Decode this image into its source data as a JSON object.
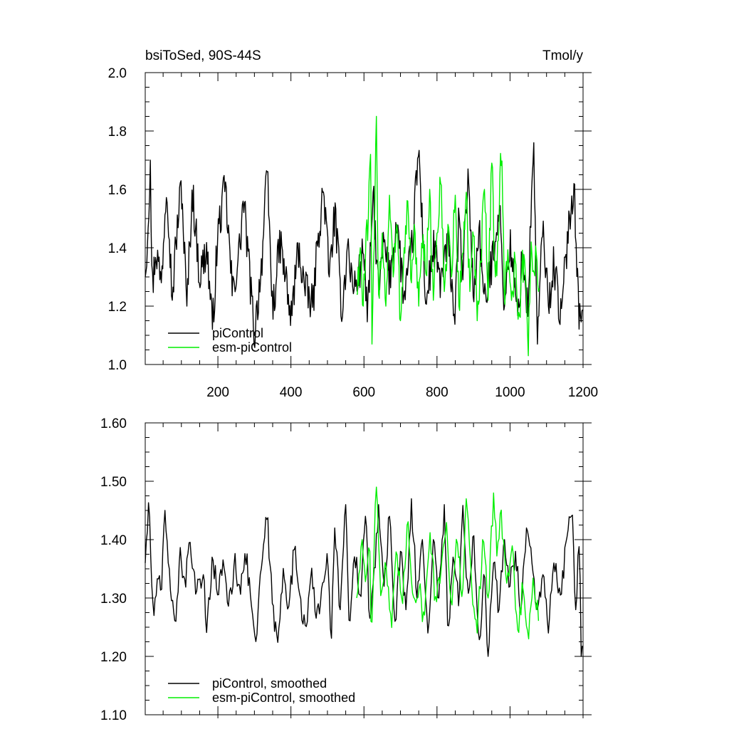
{
  "chart_data": [
    {
      "type": "line",
      "title": "bsiToSed, 90S-44S",
      "units": "Tmol/y",
      "xlim": [
        1,
        1200
      ],
      "ylim": [
        1.0,
        2.0
      ],
      "x_ticks": [
        200,
        400,
        600,
        800,
        1000,
        1200
      ],
      "x_tick_labels": [
        "200",
        "400",
        "600",
        "800",
        "1000",
        "1200"
      ],
      "y_ticks": [
        1.0,
        1.2,
        1.4,
        1.6,
        1.8,
        2.0
      ],
      "y_tick_labels": [
        "1.0",
        "1.2",
        "1.4",
        "1.6",
        "1.8",
        "2.0"
      ],
      "grid": false,
      "legend_position": "bottom-left",
      "series": [
        {
          "name": "piControl",
          "color": "#000000",
          "x_start": 1,
          "x_end": 1200,
          "points": [
            [
              1,
              1.3
            ],
            [
              8,
              1.47
            ],
            [
              15,
              1.7
            ],
            [
              20,
              1.25
            ],
            [
              30,
              1.4
            ],
            [
              45,
              1.28
            ],
            [
              60,
              1.65
            ],
            [
              75,
              1.22
            ],
            [
              85,
              1.42
            ],
            [
              100,
              1.62
            ],
            [
              115,
              1.2
            ],
            [
              130,
              1.6
            ],
            [
              150,
              1.3
            ],
            [
              170,
              1.4
            ],
            [
              185,
              1.12
            ],
            [
              200,
              1.45
            ],
            [
              220,
              1.61
            ],
            [
              240,
              1.24
            ],
            [
              260,
              1.4
            ],
            [
              270,
              1.57
            ],
            [
              300,
              1.1
            ],
            [
              320,
              1.35
            ],
            [
              335,
              1.66
            ],
            [
              350,
              1.18
            ],
            [
              370,
              1.42
            ],
            [
              385,
              1.3
            ],
            [
              400,
              1.15
            ],
            [
              420,
              1.4
            ],
            [
              440,
              1.25
            ],
            [
              460,
              1.2
            ],
            [
              475,
              1.45
            ],
            [
              490,
              1.6
            ],
            [
              505,
              1.3
            ],
            [
              520,
              1.52
            ],
            [
              540,
              1.18
            ],
            [
              555,
              1.41
            ],
            [
              570,
              1.26
            ],
            [
              585,
              1.3
            ],
            [
              600,
              1.4
            ],
            [
              610,
              1.14
            ],
            [
              625,
              1.59
            ],
            [
              640,
              1.24
            ],
            [
              655,
              1.42
            ],
            [
              670,
              1.29
            ],
            [
              690,
              1.5
            ],
            [
              710,
              1.22
            ],
            [
              730,
              1.38
            ],
            [
              750,
              1.74
            ],
            [
              770,
              1.2
            ],
            [
              790,
              1.4
            ],
            [
              810,
              1.28
            ],
            [
              830,
              1.42
            ],
            [
              850,
              1.15
            ],
            [
              860,
              1.52
            ],
            [
              870,
              1.28
            ],
            [
              885,
              1.67
            ],
            [
              900,
              1.22
            ],
            [
              915,
              1.47
            ],
            [
              930,
              1.2
            ],
            [
              950,
              1.35
            ],
            [
              970,
              1.55
            ],
            [
              985,
              1.2
            ],
            [
              1000,
              1.42
            ],
            [
              1020,
              1.16
            ],
            [
              1035,
              1.38
            ],
            [
              1048,
              1.18
            ],
            [
              1065,
              1.76
            ],
            [
              1075,
              1.07
            ],
            [
              1090,
              1.48
            ],
            [
              1105,
              1.2
            ],
            [
              1120,
              1.35
            ],
            [
              1140,
              1.15
            ],
            [
              1160,
              1.48
            ],
            [
              1175,
              1.62
            ],
            [
              1190,
              1.14
            ],
            [
              1200,
              1.26
            ]
          ]
        },
        {
          "name": "esm-piControl",
          "color": "#00ee00",
          "x_start": 580,
          "x_end": 1080,
          "points": [
            [
              580,
              1.24
            ],
            [
              590,
              1.4
            ],
            [
              598,
              1.2
            ],
            [
              605,
              1.38
            ],
            [
              612,
              1.5
            ],
            [
              618,
              1.72
            ],
            [
              622,
              1.07
            ],
            [
              628,
              1.4
            ],
            [
              634,
              1.85
            ],
            [
              640,
              1.24
            ],
            [
              650,
              1.45
            ],
            [
              660,
              1.2
            ],
            [
              670,
              1.58
            ],
            [
              680,
              1.3
            ],
            [
              690,
              1.48
            ],
            [
              700,
              1.15
            ],
            [
              710,
              1.4
            ],
            [
              720,
              1.56
            ],
            [
              730,
              1.28
            ],
            [
              740,
              1.45
            ],
            [
              750,
              1.2
            ],
            [
              760,
              1.4
            ],
            [
              770,
              1.31
            ],
            [
              780,
              1.6
            ],
            [
              790,
              1.22
            ],
            [
              800,
              1.45
            ],
            [
              810,
              1.62
            ],
            [
              820,
              1.25
            ],
            [
              830,
              1.48
            ],
            [
              840,
              1.3
            ],
            [
              850,
              1.58
            ],
            [
              860,
              1.2
            ],
            [
              870,
              1.38
            ],
            [
              880,
              1.59
            ],
            [
              890,
              1.25
            ],
            [
              900,
              1.44
            ],
            [
              910,
              1.15
            ],
            [
              920,
              1.35
            ],
            [
              930,
              1.6
            ],
            [
              940,
              1.22
            ],
            [
              950,
              1.69
            ],
            [
              960,
              1.3
            ],
            [
              970,
              1.48
            ],
            [
              975,
              1.79
            ],
            [
              985,
              1.25
            ],
            [
              995,
              1.4
            ],
            [
              1005,
              1.2
            ],
            [
              1015,
              1.38
            ],
            [
              1025,
              1.12
            ],
            [
              1035,
              1.35
            ],
            [
              1045,
              1.3
            ],
            [
              1050,
              1.03
            ],
            [
              1058,
              1.42
            ],
            [
              1065,
              1.28
            ],
            [
              1072,
              1.38
            ],
            [
              1080,
              1.26
            ]
          ]
        }
      ],
      "legend": [
        {
          "label": "piControl",
          "color": "#000000"
        },
        {
          "label": "esm-piControl",
          "color": "#00ee00"
        }
      ]
    },
    {
      "type": "line",
      "title": "",
      "xlim": [
        1,
        1200
      ],
      "ylim": [
        1.1,
        1.6
      ],
      "x_ticks": [
        200,
        400,
        600,
        800,
        1000,
        1200
      ],
      "y_ticks": [
        1.1,
        1.2,
        1.3,
        1.4,
        1.5,
        1.6
      ],
      "y_tick_labels": [
        "1.10",
        "1.20",
        "1.30",
        "1.40",
        "1.50",
        "1.60"
      ],
      "grid": false,
      "legend_position": "bottom-left",
      "series": [
        {
          "name": "piControl, smoothed",
          "color": "#000000",
          "x_start": 1,
          "x_end": 1200,
          "points": [
            [
              1,
              1.36
            ],
            [
              5,
              1.41
            ],
            [
              12,
              1.46
            ],
            [
              18,
              1.33
            ],
            [
              25,
              1.27
            ],
            [
              35,
              1.34
            ],
            [
              45,
              1.3
            ],
            [
              55,
              1.45
            ],
            [
              65,
              1.35
            ],
            [
              75,
              1.3
            ],
            [
              85,
              1.26
            ],
            [
              95,
              1.37
            ],
            [
              110,
              1.33
            ],
            [
              125,
              1.4
            ],
            [
              140,
              1.3
            ],
            [
              160,
              1.34
            ],
            [
              170,
              1.23
            ],
            [
              185,
              1.38
            ],
            [
              200,
              1.3
            ],
            [
              215,
              1.37
            ],
            [
              230,
              1.28
            ],
            [
              245,
              1.36
            ],
            [
              260,
              1.32
            ],
            [
              275,
              1.38
            ],
            [
              290,
              1.3
            ],
            [
              305,
              1.22
            ],
            [
              320,
              1.36
            ],
            [
              335,
              1.44
            ],
            [
              350,
              1.28
            ],
            [
              365,
              1.22
            ],
            [
              380,
              1.36
            ],
            [
              395,
              1.28
            ],
            [
              410,
              1.39
            ],
            [
              425,
              1.3
            ],
            [
              440,
              1.25
            ],
            [
              455,
              1.34
            ],
            [
              470,
              1.26
            ],
            [
              485,
              1.32
            ],
            [
              500,
              1.38
            ],
            [
              510,
              1.21
            ],
            [
              520,
              1.42
            ],
            [
              535,
              1.28
            ],
            [
              550,
              1.46
            ],
            [
              560,
              1.24
            ],
            [
              575,
              1.38
            ],
            [
              590,
              1.3
            ],
            [
              605,
              1.45
            ],
            [
              615,
              1.26
            ],
            [
              630,
              1.34
            ],
            [
              640,
              1.46
            ],
            [
              655,
              1.32
            ],
            [
              670,
              1.44
            ],
            [
              685,
              1.26
            ],
            [
              700,
              1.38
            ],
            [
              715,
              1.28
            ],
            [
              730,
              1.47
            ],
            [
              745,
              1.3
            ],
            [
              760,
              1.4
            ],
            [
              775,
              1.24
            ],
            [
              790,
              1.4
            ],
            [
              805,
              1.3
            ],
            [
              820,
              1.46
            ],
            [
              830,
              1.23
            ],
            [
              845,
              1.38
            ],
            [
              860,
              1.28
            ],
            [
              870,
              1.47
            ],
            [
              885,
              1.3
            ],
            [
              900,
              1.42
            ],
            [
              915,
              1.22
            ],
            [
              930,
              1.35
            ],
            [
              940,
              1.2
            ],
            [
              955,
              1.36
            ],
            [
              970,
              1.28
            ],
            [
              985,
              1.4
            ],
            [
              1000,
              1.32
            ],
            [
              1015,
              1.38
            ],
            [
              1030,
              1.28
            ],
            [
              1045,
              1.42
            ],
            [
              1060,
              1.36
            ],
            [
              1075,
              1.28
            ],
            [
              1090,
              1.34
            ],
            [
              1105,
              1.24
            ],
            [
              1120,
              1.36
            ],
            [
              1140,
              1.3
            ],
            [
              1155,
              1.4
            ],
            [
              1170,
              1.46
            ],
            [
              1180,
              1.28
            ],
            [
              1190,
              1.4
            ],
            [
              1195,
              1.2
            ],
            [
              1200,
              1.25
            ]
          ]
        },
        {
          "name": "esm-piControl, smoothed",
          "color": "#00ee00",
          "x_start": 580,
          "x_end": 1080,
          "points": [
            [
              580,
              1.3
            ],
            [
              595,
              1.4
            ],
            [
              605,
              1.32
            ],
            [
              615,
              1.42
            ],
            [
              620,
              1.22
            ],
            [
              630,
              1.45
            ],
            [
              635,
              1.5
            ],
            [
              645,
              1.3
            ],
            [
              660,
              1.36
            ],
            [
              675,
              1.24
            ],
            [
              690,
              1.38
            ],
            [
              705,
              1.28
            ],
            [
              720,
              1.44
            ],
            [
              735,
              1.3
            ],
            [
              750,
              1.32
            ],
            [
              765,
              1.26
            ],
            [
              780,
              1.42
            ],
            [
              795,
              1.3
            ],
            [
              810,
              1.34
            ],
            [
              825,
              1.44
            ],
            [
              840,
              1.28
            ],
            [
              855,
              1.4
            ],
            [
              870,
              1.3
            ],
            [
              880,
              1.47
            ],
            [
              895,
              1.32
            ],
            [
              910,
              1.24
            ],
            [
              925,
              1.4
            ],
            [
              940,
              1.3
            ],
            [
              955,
              1.48
            ],
            [
              965,
              1.36
            ],
            [
              975,
              1.46
            ],
            [
              990,
              1.32
            ],
            [
              1005,
              1.4
            ],
            [
              1020,
              1.24
            ],
            [
              1035,
              1.32
            ],
            [
              1050,
              1.22
            ],
            [
              1062,
              1.34
            ],
            [
              1072,
              1.28
            ],
            [
              1080,
              1.27
            ]
          ]
        }
      ],
      "legend": [
        {
          "label": "piControl, smoothed",
          "color": "#000000"
        },
        {
          "label": "esm-piControl, smoothed",
          "color": "#00ee00"
        }
      ]
    }
  ]
}
